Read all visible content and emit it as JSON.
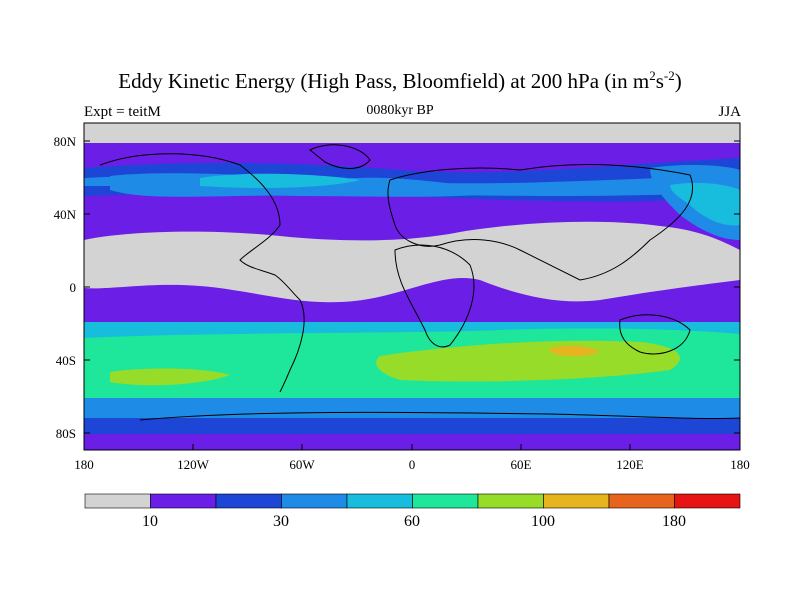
{
  "title_main": "Eddy Kinetic Energy (High Pass, Bloomfield) at 200 hPa (in m",
  "title_sup1": "2",
  "title_mid": "s",
  "title_sup2": "-2",
  "title_end": ")",
  "subtitle": "0080kyr BP",
  "expt_label": "Expt = teitM",
  "season": "JJA",
  "lat_labels": [
    "80N",
    "40N",
    "0",
    "40S",
    "80S"
  ],
  "lon_labels": [
    "180",
    "120W",
    "60W",
    "0",
    "60E",
    "120E",
    "180"
  ],
  "colorbar": {
    "colors": [
      "#d3d3d3",
      "#6a1ee6",
      "#1e46d6",
      "#1e8ce6",
      "#18bcdc",
      "#1ee69a",
      "#96dc28",
      "#e6b41e",
      "#e6641e",
      "#e61414"
    ],
    "labels": [
      "10",
      "30",
      "60",
      "100",
      "180"
    ]
  }
}
